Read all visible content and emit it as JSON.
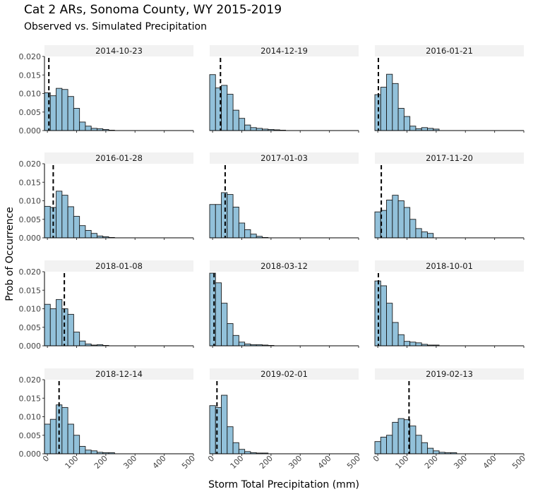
{
  "title": "Cat 2 ARs, Sonoma County, WY 2015-2019",
  "subtitle": "Observed vs. Simulated Precipitation",
  "colors": {
    "bar_fill": "#92C1DA",
    "bar_stroke": "#1a1a1a",
    "strip_bg": "#F2F2F2",
    "obs_line": "#000000"
  },
  "chart_data": {
    "type": "bar",
    "facets": 12,
    "xlabel": "Storm Total Precipitation (mm)",
    "ylabel": "Prob of Occurrence",
    "xlim": [
      -10,
      500
    ],
    "ylim": [
      0,
      0.02
    ],
    "x_ticks": [
      "0",
      "100",
      "200",
      "300",
      "400",
      "500"
    ],
    "y_ticks": [
      "0.000",
      "0.005",
      "0.010",
      "0.015",
      "0.020"
    ],
    "bin_width": 20,
    "bin_start": -10,
    "panels": [
      {
        "label": "2014-10-23",
        "observed": 5,
        "density": [
          0.0102,
          0.0094,
          0.0114,
          0.0111,
          0.0092,
          0.006,
          0.0023,
          0.0012,
          0.0006,
          0.0005,
          0.0003,
          0.0001
        ]
      },
      {
        "label": "2014-12-19",
        "observed": 27,
        "density": [
          0.0151,
          0.0115,
          0.0122,
          0.0098,
          0.0055,
          0.0033,
          0.0015,
          0.0008,
          0.0006,
          0.0004,
          0.0003,
          0.0002,
          0.0001
        ]
      },
      {
        "label": "2016-01-21",
        "observed": 2,
        "density": [
          0.0097,
          0.0117,
          0.0152,
          0.0127,
          0.006,
          0.0038,
          0.0012,
          0.0005,
          0.0008,
          0.0006,
          0.0004
        ]
      },
      {
        "label": "2016-01-28",
        "observed": 20,
        "density": [
          0.0085,
          0.0082,
          0.0126,
          0.0115,
          0.0084,
          0.0058,
          0.0033,
          0.002,
          0.0012,
          0.0005,
          0.0003,
          0.0001
        ]
      },
      {
        "label": "2017-01-03",
        "observed": 43,
        "density": [
          0.009,
          0.009,
          0.0122,
          0.0117,
          0.0083,
          0.004,
          0.0022,
          0.001,
          0.0004,
          0.0001
        ]
      },
      {
        "label": "2017-11-20",
        "observed": 12,
        "density": [
          0.007,
          0.0074,
          0.0102,
          0.0115,
          0.01,
          0.0082,
          0.005,
          0.0025,
          0.0016,
          0.0012
        ]
      },
      {
        "label": "2018-01-08",
        "observed": 58,
        "density": [
          0.0112,
          0.01,
          0.0125,
          0.01,
          0.0085,
          0.0037,
          0.0013,
          0.0005,
          0.0002,
          0.0003,
          0.0001
        ]
      },
      {
        "label": "2018-03-12",
        "observed": 5,
        "density": [
          0.0196,
          0.017,
          0.0115,
          0.006,
          0.0028,
          0.001,
          0.0005,
          0.0003,
          0.0003,
          0.0002,
          0.0001
        ]
      },
      {
        "label": "2018-10-01",
        "observed": 2,
        "density": [
          0.0175,
          0.0162,
          0.0115,
          0.0063,
          0.003,
          0.0012,
          0.001,
          0.0008,
          0.0004,
          0.0002,
          0.0002
        ]
      },
      {
        "label": "2018-12-14",
        "observed": 40,
        "density": [
          0.008,
          0.0093,
          0.0132,
          0.0125,
          0.008,
          0.005,
          0.002,
          0.001,
          0.0008,
          0.0004,
          0.0003,
          0.0003
        ]
      },
      {
        "label": "2019-02-01",
        "observed": 15,
        "density": [
          0.013,
          0.0125,
          0.0158,
          0.0073,
          0.003,
          0.0012,
          0.0006,
          0.0003,
          0.0002,
          0.0002
        ]
      },
      {
        "label": "2019-02-13",
        "observed": 107,
        "density": [
          0.0033,
          0.0045,
          0.005,
          0.0085,
          0.0095,
          0.0092,
          0.0075,
          0.005,
          0.003,
          0.0015,
          0.0008,
          0.0004,
          0.0003,
          0.0003
        ]
      }
    ]
  }
}
